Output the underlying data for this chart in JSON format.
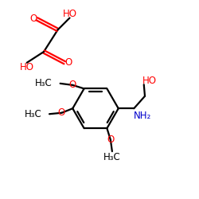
{
  "background_color": "#ffffff",
  "bond_color": "#000000",
  "oxygen_color": "#ff0000",
  "nitrogen_color": "#0000cc",
  "carbon_color": "#000000",
  "line_width": 1.6,
  "font_size": 8.5,
  "fig_w": 2.5,
  "fig_h": 2.5,
  "dpi": 100,
  "xlim": [
    0,
    10
  ],
  "ylim": [
    0,
    10
  ]
}
